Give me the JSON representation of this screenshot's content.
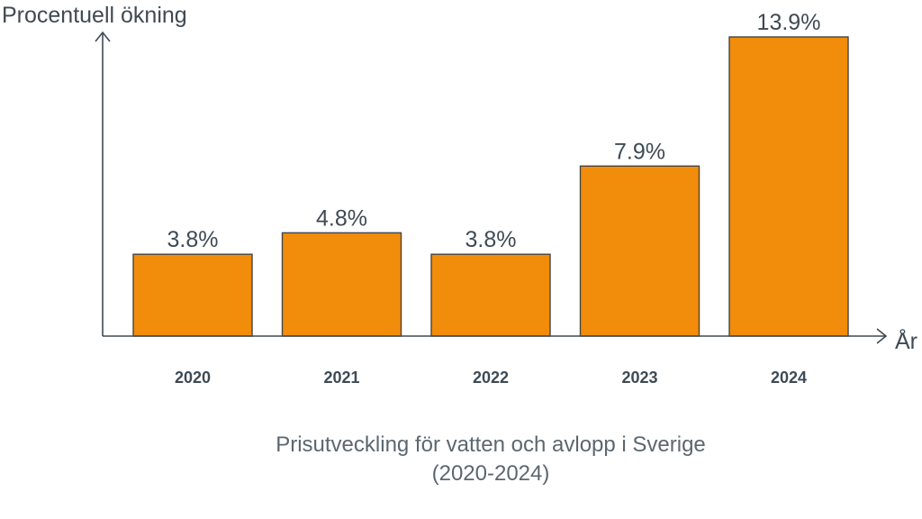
{
  "chart_data": {
    "type": "bar",
    "categories": [
      "2020",
      "2021",
      "2022",
      "2023",
      "2024"
    ],
    "values": [
      3.8,
      4.8,
      3.8,
      7.9,
      13.9
    ],
    "value_labels": [
      "3.8%",
      "4.8%",
      "3.8%",
      "7.9%",
      "13.9%"
    ],
    "title": "Prisutveckling för vatten och avlopp i Sverige",
    "subtitle": "(2020-2024)",
    "xlabel": "År",
    "ylabel": "Procentuell ökning",
    "ylim": [
      0,
      13.9
    ],
    "grid": false,
    "legend": "none"
  },
  "colors": {
    "bar": "#f28c0b",
    "bar_stroke": "#444444",
    "text": "#3e4a54",
    "title_text": "#5b6770"
  }
}
